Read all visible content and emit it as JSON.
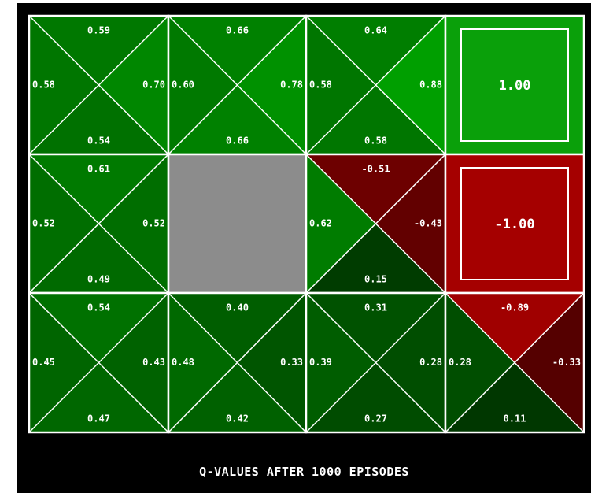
{
  "caption": "Q-VALUES AFTER 1000 EPISODES",
  "colors": {
    "background": "#000000",
    "grid_line": "#ffffff",
    "wall": "#8c8c8c"
  },
  "grid": {
    "rows": 3,
    "cols": 4,
    "cells": [
      {
        "row": 0,
        "col": 0,
        "kind": "q",
        "north": "0.59",
        "west": "0.58",
        "east": "0.70",
        "south": "0.54"
      },
      {
        "row": 0,
        "col": 1,
        "kind": "q",
        "north": "0.66",
        "west": "0.60",
        "east": "0.78",
        "south": "0.66"
      },
      {
        "row": 0,
        "col": 2,
        "kind": "q",
        "north": "0.64",
        "west": "0.58",
        "east": "0.88",
        "south": "0.58"
      },
      {
        "row": 0,
        "col": 3,
        "kind": "terminal",
        "value": "1.00"
      },
      {
        "row": 1,
        "col": 0,
        "kind": "q",
        "north": "0.61",
        "west": "0.52",
        "east": "0.52",
        "south": "0.49"
      },
      {
        "row": 1,
        "col": 1,
        "kind": "wall"
      },
      {
        "row": 1,
        "col": 2,
        "kind": "q",
        "north": "-0.51",
        "west": "0.62",
        "east": "-0.43",
        "south": "0.15"
      },
      {
        "row": 1,
        "col": 3,
        "kind": "terminal",
        "value": "-1.00"
      },
      {
        "row": 2,
        "col": 0,
        "kind": "q",
        "north": "0.54",
        "west": "0.45",
        "east": "0.43",
        "south": "0.47"
      },
      {
        "row": 2,
        "col": 1,
        "kind": "q",
        "north": "0.40",
        "west": "0.48",
        "east": "0.33",
        "south": "0.42"
      },
      {
        "row": 2,
        "col": 2,
        "kind": "q",
        "north": "0.31",
        "west": "0.39",
        "east": "0.28",
        "south": "0.27"
      },
      {
        "row": 2,
        "col": 3,
        "kind": "q",
        "north": "-0.89",
        "west": "0.28",
        "east": "-0.33",
        "south": "0.11"
      }
    ]
  }
}
